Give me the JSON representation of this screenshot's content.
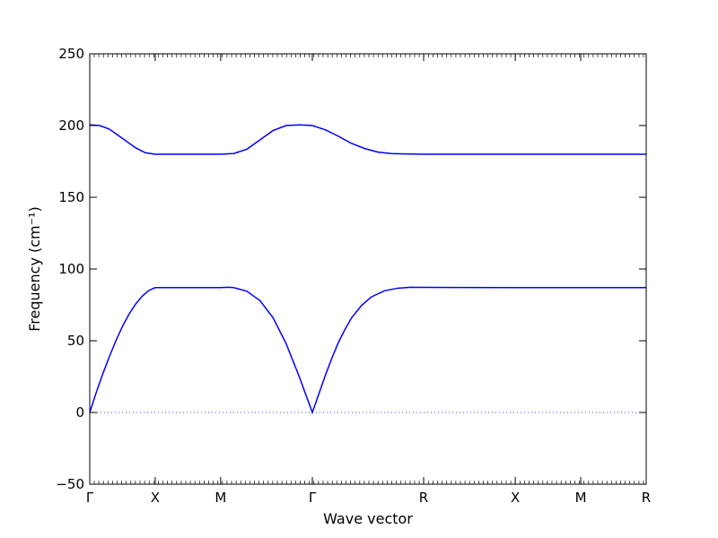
{
  "chart_data": {
    "type": "line",
    "xlabel": "Wave vector",
    "ylabel": "Frequency (cm⁻¹)",
    "ylim": [
      -50,
      250
    ],
    "yticks": [
      -50,
      0,
      50,
      100,
      150,
      200,
      250
    ],
    "xlim": [
      0,
      8.5
    ],
    "kpoints": [
      {
        "label": "Γ",
        "x": 0
      },
      {
        "label": "X",
        "x": 1
      },
      {
        "label": "M",
        "x": 2
      },
      {
        "label": "Γ",
        "x": 3.4
      },
      {
        "label": "R",
        "x": 5.1
      },
      {
        "label": "X",
        "x": 6.5
      },
      {
        "label": "M",
        "x": 7.5
      },
      {
        "label": "R",
        "x": 8.5
      }
    ],
    "zero_line": true,
    "line_color": "#0000ff",
    "series": [
      {
        "points": [
          [
            0,
            200.5
          ],
          [
            0.15,
            200.0
          ],
          [
            0.3,
            197.5
          ],
          [
            0.5,
            191.0
          ],
          [
            0.7,
            184.5
          ],
          [
            0.85,
            181.0
          ],
          [
            1,
            180.0
          ],
          [
            2,
            180.0
          ],
          [
            2.2,
            180.5
          ],
          [
            2.4,
            183.5
          ],
          [
            2.6,
            190.0
          ],
          [
            2.8,
            196.5
          ],
          [
            3.0,
            200.0
          ],
          [
            3.2,
            200.5
          ],
          [
            3.4,
            200.0
          ],
          [
            3.6,
            197.0
          ],
          [
            3.8,
            192.5
          ],
          [
            4.0,
            187.5
          ],
          [
            4.2,
            184.0
          ],
          [
            4.4,
            181.5
          ],
          [
            4.6,
            180.5
          ],
          [
            4.8,
            180.2
          ],
          [
            5.1,
            180.0
          ],
          [
            6.5,
            180.0
          ],
          [
            7.5,
            180.0
          ],
          [
            8.5,
            180.0
          ]
        ]
      },
      {
        "points": [
          [
            0,
            0
          ],
          [
            0.1,
            14
          ],
          [
            0.2,
            27
          ],
          [
            0.3,
            39
          ],
          [
            0.4,
            50
          ],
          [
            0.5,
            60
          ],
          [
            0.6,
            68.5
          ],
          [
            0.7,
            75.5
          ],
          [
            0.8,
            81
          ],
          [
            0.9,
            85
          ],
          [
            1,
            87
          ],
          [
            2,
            87
          ],
          [
            2.1,
            87.3
          ],
          [
            2.2,
            87
          ],
          [
            2.4,
            84.5
          ],
          [
            2.6,
            78
          ],
          [
            2.8,
            66
          ],
          [
            3.0,
            48
          ],
          [
            3.2,
            25
          ],
          [
            3.4,
            0
          ],
          [
            3.5,
            13
          ],
          [
            3.6,
            26
          ],
          [
            3.7,
            38
          ],
          [
            3.8,
            49
          ],
          [
            3.9,
            58
          ],
          [
            4.0,
            66
          ],
          [
            4.15,
            74.5
          ],
          [
            4.3,
            80.5
          ],
          [
            4.5,
            84.8
          ],
          [
            4.7,
            86.6
          ],
          [
            4.9,
            87.3
          ],
          [
            5.1,
            87.2
          ],
          [
            6.5,
            87.0
          ],
          [
            7.5,
            87.0
          ],
          [
            8.5,
            87.0
          ]
        ]
      }
    ]
  }
}
